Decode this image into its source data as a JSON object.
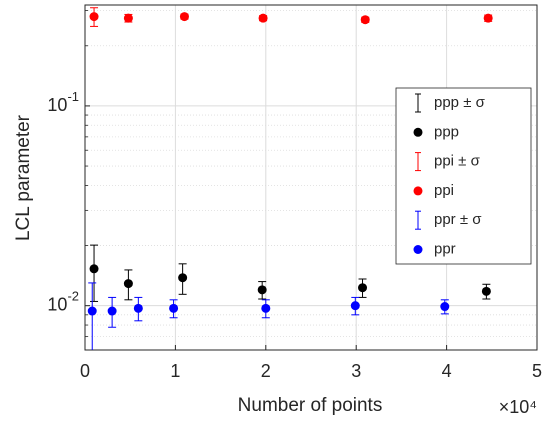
{
  "chart_data": {
    "type": "errorbar_scatter",
    "xlabel": "Number of points",
    "ylabel": "LCL parameter",
    "x_multiplier": "×10⁴",
    "xlim": [
      0,
      5
    ],
    "xticks": [
      0,
      1,
      2,
      3,
      4,
      5
    ],
    "ylim": [
      0.006,
      0.32
    ],
    "yscale": "log",
    "yticks": [
      {
        "value": 0.01,
        "label": "10^-2"
      },
      {
        "value": 0.1,
        "label": "10^-1"
      }
    ],
    "yminor_ticks": [
      0.006,
      0.007,
      0.008,
      0.009,
      0.02,
      0.03,
      0.04,
      0.05,
      0.06,
      0.07,
      0.08,
      0.09,
      0.2,
      0.3
    ],
    "grid": true,
    "legend": "right",
    "series": [
      {
        "name": "ppp",
        "error_name": "ppp ± σ",
        "color": "#000000",
        "x": [
          0.1,
          0.48,
          1.08,
          1.96,
          3.07,
          4.44
        ],
        "values": [
          0.0153,
          0.0129,
          0.0138,
          0.012,
          0.0123,
          0.0118
        ],
        "errors": [
          0.0048,
          0.0022,
          0.0024,
          0.0012,
          0.0013,
          0.001
        ]
      },
      {
        "name": "ppi",
        "error_name": "ppi ± σ",
        "color": "#ff0000",
        "x": [
          0.1,
          0.48,
          1.1,
          1.97,
          3.1,
          4.46
        ],
        "values": [
          0.28,
          0.275,
          0.28,
          0.275,
          0.27,
          0.275
        ],
        "errors": [
          0.03,
          0.012,
          0.008,
          0.008,
          0.008,
          0.01
        ]
      },
      {
        "name": "ppr",
        "error_name": "ppr ± σ",
        "color": "#0000ff",
        "x": [
          0.08,
          0.3,
          0.59,
          0.98,
          2.0,
          2.99,
          3.98
        ],
        "values": [
          0.0094,
          0.0094,
          0.0097,
          0.0097,
          0.0097,
          0.01,
          0.0099
        ],
        "errors": [
          0.0036,
          0.0016,
          0.0013,
          0.001,
          0.001,
          0.001,
          0.0008
        ]
      }
    ]
  }
}
